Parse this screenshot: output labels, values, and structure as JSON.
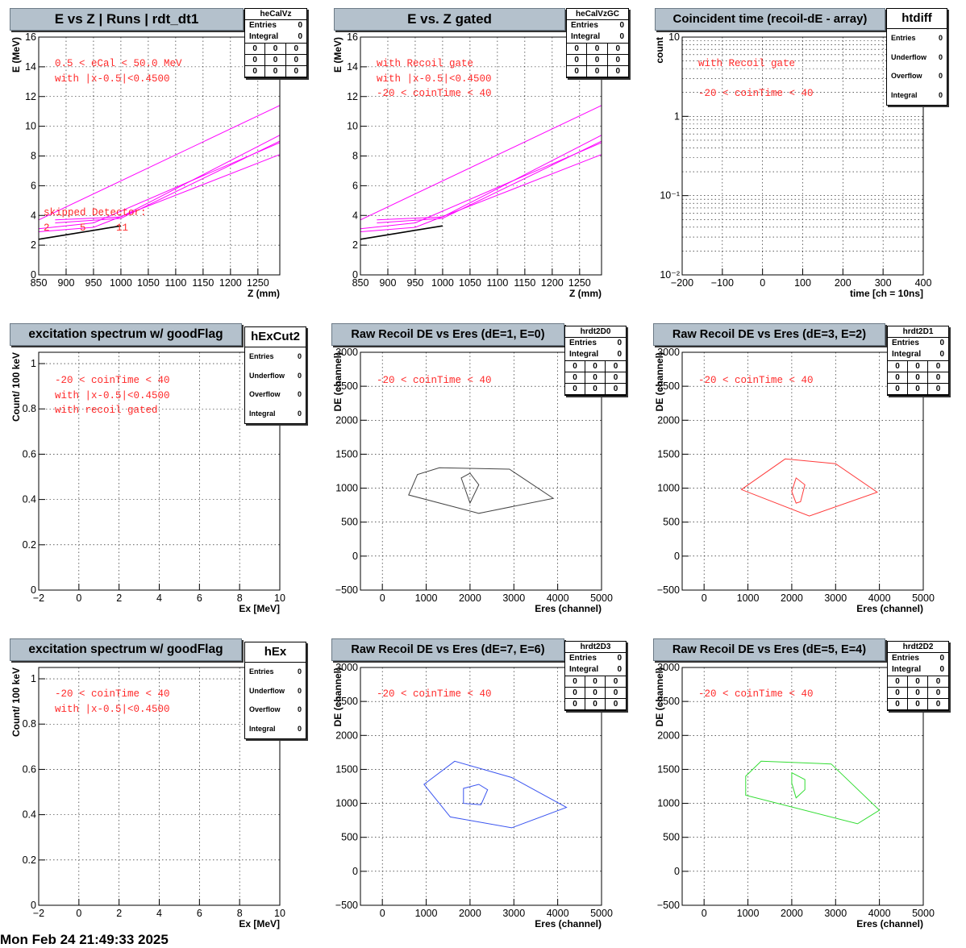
{
  "footer": "Mon Feb 24 21:49:33 2025",
  "colors": {
    "magenta": "#ff00ff",
    "red": "#ff3b3b",
    "blue": "#3b55f0",
    "green": "#33dd33",
    "gray": "#444444",
    "annot": "#ff2a2a"
  },
  "panels": [
    {
      "title": "E vs Z | Runs | rdt_dt1",
      "stats": {
        "name": "heCalVz",
        "rows": [
          [
            "Entries",
            "0"
          ],
          [
            "Integral",
            "0"
          ]
        ],
        "grid": [
          "0",
          "0",
          "0",
          "0",
          "0",
          "0",
          "0",
          "0",
          "0"
        ]
      },
      "annotations": [
        "0.5 < eCal < 50.0 MeV",
        "with |x-0.5|<0.4500"
      ],
      "annotations2": [
        "skipped Detector:",
        "2     5     11"
      ],
      "chart_data": {
        "type": "line",
        "xlabel": "Z (mm)",
        "ylabel": "E (MeV)",
        "xlim": [
          850,
          1290
        ],
        "ylim": [
          0,
          16
        ],
        "grid": true,
        "ylog": false,
        "xticks": [
          850,
          900,
          950,
          1000,
          1050,
          1100,
          1150,
          1200,
          1250
        ],
        "yticks": [
          0,
          2,
          4,
          6,
          8,
          10,
          12,
          14,
          16
        ],
        "series": [
          {
            "color": "magenta",
            "x": [
              850,
              1290
            ],
            "y": [
              3.7,
              11.4
            ]
          },
          {
            "color": "magenta",
            "x": [
              880,
              1000,
              1290
            ],
            "y": [
              3.7,
              3.9,
              9.4
            ]
          },
          {
            "color": "magenta",
            "x": [
              850,
              950,
              1290
            ],
            "y": [
              3.1,
              3.5,
              8.9
            ]
          },
          {
            "color": "magenta",
            "x": [
              850,
              950,
              1290
            ],
            "y": [
              2.9,
              3.2,
              8.1
            ]
          },
          {
            "color": "magenta",
            "x": [
              880,
              1000,
              1290
            ],
            "y": [
              3.5,
              3.8,
              9.0
            ]
          },
          {
            "color": "black",
            "x": [
              850,
              1000
            ],
            "y": [
              2.4,
              3.3
            ]
          }
        ]
      }
    },
    {
      "title": "E vs. Z gated",
      "stats": {
        "name": "heCalVzGC",
        "rows": [
          [
            "Entries",
            "0"
          ],
          [
            "Integral",
            "0"
          ]
        ],
        "grid": [
          "0",
          "0",
          "0",
          "0",
          "0",
          "0",
          "0",
          "0",
          "0"
        ]
      },
      "annotations": [
        "with Recoil gate",
        "with |x-0.5|<0.4500",
        "-20 < coinTime < 40"
      ],
      "annotations2": [],
      "chart_data": {
        "type": "line",
        "xlabel": "Z (mm)",
        "ylabel": "E (MeV)",
        "xlim": [
          850,
          1290
        ],
        "ylim": [
          0,
          16
        ],
        "grid": true,
        "ylog": false,
        "xticks": [
          850,
          900,
          950,
          1000,
          1050,
          1100,
          1150,
          1200,
          1250
        ],
        "yticks": [
          0,
          2,
          4,
          6,
          8,
          10,
          12,
          14,
          16
        ],
        "series": [
          {
            "color": "magenta",
            "x": [
              850,
              1290
            ],
            "y": [
              3.7,
              11.4
            ]
          },
          {
            "color": "magenta",
            "x": [
              880,
              1000,
              1290
            ],
            "y": [
              3.7,
              3.9,
              9.4
            ]
          },
          {
            "color": "magenta",
            "x": [
              850,
              950,
              1290
            ],
            "y": [
              3.1,
              3.5,
              8.9
            ]
          },
          {
            "color": "magenta",
            "x": [
              850,
              950,
              1290
            ],
            "y": [
              2.9,
              3.2,
              8.1
            ]
          },
          {
            "color": "magenta",
            "x": [
              880,
              1000,
              1290
            ],
            "y": [
              3.5,
              3.8,
              9.0
            ]
          },
          {
            "color": "black",
            "x": [
              850,
              1000
            ],
            "y": [
              2.4,
              3.3
            ]
          }
        ]
      }
    },
    {
      "title": "Coincident time (recoil-dE - array)",
      "stats": {
        "name": "htdiff",
        "rows": [
          [
            "Entries",
            "0"
          ],
          [
            "Underflow",
            "0"
          ],
          [
            "Overflow",
            "0"
          ],
          [
            "Integral",
            "0"
          ]
        ],
        "grid": []
      },
      "annotations": [
        "with Recoil gate",
        "",
        "-20 < coinTime < 40"
      ],
      "annotations2": [],
      "chart_data": {
        "type": "line",
        "xlabel": "time [ch = 10ns]",
        "ylabel": "count",
        "xlim": [
          -200,
          400
        ],
        "ylim": [
          0.01,
          10
        ],
        "grid": true,
        "ylog": true,
        "xticks": [
          -200,
          -100,
          0,
          100,
          200,
          300,
          400
        ],
        "yticks": [
          0.01,
          0.1,
          1,
          10
        ],
        "yticklabels": [
          "10⁻²",
          "10⁻¹",
          "1",
          "10"
        ],
        "series": [
          {
            "color": "red",
            "x": [
              -200,
              400
            ],
            "y": [
              0.01,
              0.01
            ]
          }
        ]
      }
    },
    {
      "title": "excitation spectrum w/ goodFlag",
      "stats": {
        "name": "hExCut2",
        "rows": [
          [
            "Entries",
            "0"
          ],
          [
            "Underflow",
            "0"
          ],
          [
            "Overflow",
            "0"
          ],
          [
            "Integral",
            "0"
          ]
        ],
        "grid": []
      },
      "annotations": [
        "-20 < coinTime < 40",
        "with |x-0.5|<0.4500",
        "with recoil gated"
      ],
      "annotations2": [],
      "chart_data": {
        "type": "line",
        "xlabel": "Ex [MeV]",
        "ylabel": "Count/ 100 keV",
        "xlim": [
          -2,
          10
        ],
        "ylim": [
          0,
          1.05
        ],
        "grid": true,
        "ylog": false,
        "xticks": [
          -2,
          0,
          2,
          4,
          6,
          8,
          10
        ],
        "yticks": [
          0,
          0.2,
          0.4,
          0.6,
          0.8,
          1
        ],
        "series": [
          {
            "color": "red",
            "x": [
              -2,
              10
            ],
            "y": [
              0,
              0
            ]
          }
        ]
      }
    },
    {
      "title": "Raw Recoil DE vs Eres (dE=1, E=0)",
      "stats": {
        "name": "hrdt2D0",
        "rows": [
          [
            "Entries",
            "0"
          ],
          [
            "Integral",
            "0"
          ]
        ],
        "grid": [
          "0",
          "0",
          "0",
          "0",
          "0",
          "0",
          "0",
          "0",
          "0"
        ]
      },
      "annotations": [
        "-20 < coinTime < 40"
      ],
      "annotations2": [],
      "chart_data": {
        "type": "line",
        "xlabel": "Eres (channel)",
        "ylabel": "DE (channel)",
        "xlim": [
          -500,
          5000
        ],
        "ylim": [
          -500,
          3000
        ],
        "grid": true,
        "ylog": false,
        "xticks": [
          0,
          1000,
          2000,
          3000,
          4000,
          5000
        ],
        "yticks": [
          -500,
          0,
          500,
          1000,
          1500,
          2000,
          2500,
          3000
        ],
        "series": [
          {
            "color": "gray",
            "closed": true,
            "x": [
              600,
              800,
              1300,
              2900,
              3900,
              2200
            ],
            "y": [
              900,
              1200,
              1300,
              1280,
              850,
              630
            ]
          },
          {
            "color": "gray",
            "closed": true,
            "x": [
              1800,
              2000,
              2200,
              2000
            ],
            "y": [
              1150,
              1220,
              1050,
              780
            ]
          }
        ]
      }
    },
    {
      "title": "Raw Recoil DE vs Eres (dE=3, E=2)",
      "stats": {
        "name": "hrdt2D1",
        "rows": [
          [
            "Entries",
            "0"
          ],
          [
            "Integral",
            "0"
          ]
        ],
        "grid": [
          "0",
          "0",
          "0",
          "0",
          "0",
          "0",
          "0",
          "0",
          "0"
        ]
      },
      "annotations": [
        "-20 < coinTime < 40"
      ],
      "annotations2": [],
      "chart_data": {
        "type": "line",
        "xlabel": "Eres (channel)",
        "ylabel": "DE (channel)",
        "xlim": [
          -500,
          5000
        ],
        "ylim": [
          -500,
          3000
        ],
        "grid": true,
        "ylog": false,
        "xticks": [
          0,
          1000,
          2000,
          3000,
          4000,
          5000
        ],
        "yticks": [
          -500,
          0,
          500,
          1000,
          1500,
          2000,
          2500,
          3000
        ],
        "series": [
          {
            "color": "red",
            "closed": true,
            "x": [
              850,
              1850,
              3000,
              3950,
              2400
            ],
            "y": [
              980,
              1430,
              1360,
              940,
              590
            ]
          },
          {
            "color": "red",
            "closed": true,
            "x": [
              2000,
              2100,
              2300,
              2200,
              2100
            ],
            "y": [
              950,
              1150,
              1050,
              800,
              780
            ]
          }
        ]
      }
    },
    {
      "title": "excitation spectrum w/ goodFlag",
      "stats": {
        "name": "hEx",
        "rows": [
          [
            "Entries",
            "0"
          ],
          [
            "Underflow",
            "0"
          ],
          [
            "Overflow",
            "0"
          ],
          [
            "Integral",
            "0"
          ]
        ],
        "grid": []
      },
      "annotations": [
        "-20 < coinTime < 40",
        "with |x-0.5|<0.4500"
      ],
      "annotations2": [],
      "chart_data": {
        "type": "line",
        "xlabel": "Ex [MeV]",
        "ylabel": "Count/ 100 keV",
        "xlim": [
          -2,
          10
        ],
        "ylim": [
          0,
          1.05
        ],
        "grid": true,
        "ylog": false,
        "xticks": [
          -2,
          0,
          2,
          4,
          6,
          8,
          10
        ],
        "yticks": [
          0,
          0.2,
          0.4,
          0.6,
          0.8,
          1
        ],
        "series": []
      }
    },
    {
      "title": "Raw Recoil DE vs Eres (dE=7, E=6)",
      "stats": {
        "name": "hrdt2D3",
        "rows": [
          [
            "Entries",
            "0"
          ],
          [
            "Integral",
            "0"
          ]
        ],
        "grid": [
          "0",
          "0",
          "0",
          "0",
          "0",
          "0",
          "0",
          "0",
          "0"
        ]
      },
      "annotations": [
        "-20 < coinTime < 40"
      ],
      "annotations2": [],
      "chart_data": {
        "type": "line",
        "xlabel": "Eres (channel)",
        "ylabel": "DE (channel)",
        "xlim": [
          -500,
          5000
        ],
        "ylim": [
          -500,
          3000
        ],
        "grid": true,
        "ylog": false,
        "xticks": [
          0,
          1000,
          2000,
          3000,
          4000,
          5000
        ],
        "yticks": [
          -500,
          0,
          500,
          1000,
          1500,
          2000,
          2500,
          3000
        ],
        "series": [
          {
            "color": "blue",
            "closed": true,
            "x": [
              950,
              1650,
              2950,
              4200,
              2950,
              1550
            ],
            "y": [
              1280,
              1620,
              1380,
              940,
              640,
              800
            ]
          },
          {
            "color": "blue",
            "closed": true,
            "x": [
              1850,
              2200,
              2400,
              2250,
              1850
            ],
            "y": [
              1220,
              1280,
              1200,
              980,
              1000
            ]
          }
        ]
      }
    },
    {
      "title": "Raw Recoil DE vs Eres (dE=5, E=4)",
      "stats": {
        "name": "hrdt2D2",
        "rows": [
          [
            "Entries",
            "0"
          ],
          [
            "Integral",
            "0"
          ]
        ],
        "grid": [
          "0",
          "0",
          "0",
          "0",
          "0",
          "0",
          "0",
          "0",
          "0"
        ]
      },
      "annotations": [
        "-20 < coinTime < 40"
      ],
      "annotations2": [],
      "chart_data": {
        "type": "line",
        "xlabel": "Eres (channel)",
        "ylabel": "DE (channel)",
        "xlim": [
          -500,
          5000
        ],
        "ylim": [
          -500,
          3000
        ],
        "grid": true,
        "ylog": false,
        "xticks": [
          0,
          1000,
          2000,
          3000,
          4000,
          5000
        ],
        "yticks": [
          -500,
          0,
          500,
          1000,
          1500,
          2000,
          2500,
          3000
        ],
        "series": [
          {
            "color": "green",
            "closed": true,
            "x": [
              950,
              1300,
              2900,
              4000,
              3500,
              950
            ],
            "y": [
              1400,
              1620,
              1580,
              900,
              700,
              1120
            ]
          },
          {
            "color": "green",
            "closed": true,
            "x": [
              2000,
              2300,
              2300,
              2100,
              2000
            ],
            "y": [
              1450,
              1350,
              1200,
              1080,
              1300
            ]
          }
        ]
      }
    }
  ]
}
